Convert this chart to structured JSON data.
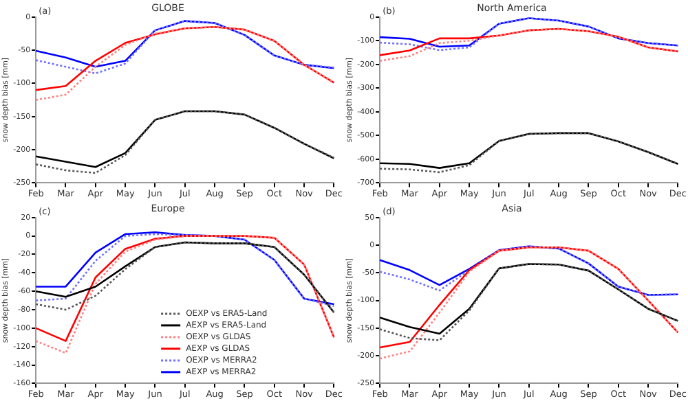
{
  "chart_data": [
    {
      "type": "line",
      "title": "GLOBE",
      "annotations": [
        "(a)"
      ],
      "ylabel": "snow depth bias [mm]",
      "categories": [
        "Feb",
        "Mar",
        "Apr",
        "May",
        "Jun",
        "Jul",
        "Aug",
        "Sep",
        "Oct",
        "Nov",
        "Dec"
      ],
      "ylim": [
        -250,
        0
      ],
      "yticks": [
        -250,
        -200,
        -150,
        -100,
        -50,
        0
      ],
      "grid": false,
      "legend": false,
      "series": [
        {
          "color": "#555555",
          "line_style": "dotted",
          "values": [
            -222,
            -231,
            -235,
            -208,
            -155,
            -142,
            -142,
            -147,
            -167,
            -191,
            -212
          ]
        },
        {
          "color": "#000000",
          "line_style": "solid",
          "values": [
            -210,
            -218,
            -226,
            -205,
            -155,
            -142,
            -142,
            -147,
            -167,
            -191,
            -213
          ]
        },
        {
          "color": "#ff8080",
          "line_style": "dotted",
          "values": [
            -125,
            -117,
            -75,
            -42,
            -25,
            -17,
            -15,
            -19,
            -36,
            -72,
            -98
          ]
        },
        {
          "color": "#ff0000",
          "line_style": "solid",
          "values": [
            -110,
            -104,
            -66,
            -39,
            -26,
            -17,
            -15,
            -19,
            -36,
            -72,
            -99
          ]
        },
        {
          "color": "#7070ff",
          "line_style": "dotted",
          "values": [
            -65,
            -75,
            -85,
            -70,
            -20,
            -6,
            -9,
            -27,
            -58,
            -72,
            -76
          ]
        },
        {
          "color": "#0000ff",
          "line_style": "solid",
          "values": [
            -51,
            -61,
            -75,
            -66,
            -20,
            -6,
            -9,
            -27,
            -58,
            -72,
            -77
          ]
        }
      ]
    },
    {
      "type": "line",
      "title": "North America",
      "annotations": [
        "(b)"
      ],
      "ylabel": "snow depth bias [mm]",
      "categories": [
        "Feb",
        "Mar",
        "Apr",
        "May",
        "Jun",
        "Jul",
        "Aug",
        "Sep",
        "Oct",
        "Nov",
        "Dec"
      ],
      "ylim": [
        -700,
        0
      ],
      "yticks": [
        -700,
        -600,
        -500,
        -400,
        -300,
        -200,
        -100,
        0
      ],
      "grid": false,
      "legend": false,
      "series": [
        {
          "color": "#555555",
          "line_style": "dotted",
          "values": [
            -640,
            -643,
            -655,
            -625,
            -523,
            -493,
            -490,
            -490,
            -525,
            -570,
            -620
          ]
        },
        {
          "color": "#000000",
          "line_style": "solid",
          "values": [
            -617,
            -620,
            -637,
            -617,
            -523,
            -493,
            -490,
            -490,
            -525,
            -570,
            -620
          ]
        },
        {
          "color": "#ff8080",
          "line_style": "dotted",
          "values": [
            -185,
            -165,
            -110,
            -100,
            -78,
            -56,
            -50,
            -60,
            -83,
            -128,
            -145
          ]
        },
        {
          "color": "#ff0000",
          "line_style": "solid",
          "values": [
            -161,
            -141,
            -90,
            -90,
            -78,
            -56,
            -50,
            -60,
            -83,
            -128,
            -145
          ]
        },
        {
          "color": "#7070ff",
          "line_style": "dotted",
          "values": [
            -108,
            -115,
            -140,
            -128,
            -28,
            -5,
            -15,
            -40,
            -90,
            -110,
            -120
          ]
        },
        {
          "color": "#0000ff",
          "line_style": "solid",
          "values": [
            -85,
            -92,
            -125,
            -120,
            -28,
            -5,
            -15,
            -40,
            -90,
            -110,
            -120
          ]
        }
      ]
    },
    {
      "type": "line",
      "title": "Europe",
      "annotations": [
        "(c)"
      ],
      "ylabel": "snow depth bias [mm]",
      "categories": [
        "Feb",
        "Mar",
        "Apr",
        "May",
        "Jun",
        "Jul",
        "Aug",
        "Sep",
        "Oct",
        "Nov",
        "Dec"
      ],
      "ylim": [
        -160,
        20
      ],
      "yticks": [
        -160,
        -140,
        -120,
        -100,
        -80,
        -60,
        -40,
        -20,
        0,
        20
      ],
      "grid": false,
      "legend": "bottom",
      "series": [
        {
          "name": "OEXP vs ERA5-Land",
          "color": "#555555",
          "line_style": "dotted",
          "values": [
            -74,
            -80,
            -65,
            -36,
            -12,
            -7,
            -8,
            -8,
            -12,
            -42,
            -83
          ]
        },
        {
          "name": "AEXP vs ERA5-Land",
          "color": "#000000",
          "line_style": "solid",
          "values": [
            -60,
            -66,
            -55,
            -33,
            -12,
            -7,
            -8,
            -8,
            -12,
            -42,
            -83
          ]
        },
        {
          "name": "OEXP vs GLDAS",
          "color": "#ff8080",
          "line_style": "dotted",
          "values": [
            -114,
            -127,
            -52,
            -17,
            -4,
            0,
            0,
            0,
            -2,
            -31,
            -110
          ]
        },
        {
          "name": "AEXP vs GLDAS",
          "color": "#ff0000",
          "line_style": "solid",
          "values": [
            -100,
            -114,
            -45,
            -14,
            -3,
            0,
            0,
            0,
            -2,
            -31,
            -110
          ]
        },
        {
          "name": "OEXP vs MERRA2",
          "color": "#7070ff",
          "line_style": "dotted",
          "values": [
            -70,
            -68,
            -27,
            0,
            2,
            1,
            0,
            -4,
            -26,
            -68,
            -76
          ]
        },
        {
          "name": "AEXP vs MERRA2",
          "color": "#0000ff",
          "line_style": "solid",
          "values": [
            -55,
            -55,
            -18,
            2,
            4,
            1,
            0,
            -4,
            -26,
            -68,
            -74
          ]
        }
      ]
    },
    {
      "type": "line",
      "title": "Asia",
      "annotations": [
        "(d)"
      ],
      "ylabel": "snow depth bias [mm]",
      "categories": [
        "Feb",
        "Mar",
        "Apr",
        "May",
        "Jun",
        "Jul",
        "Aug",
        "Sep",
        "Oct",
        "Nov",
        "Dec"
      ],
      "ylim": [
        -250,
        50
      ],
      "yticks": [
        -250,
        -200,
        -150,
        -100,
        -50,
        0,
        50
      ],
      "grid": false,
      "legend": false,
      "series": [
        {
          "color": "#555555",
          "line_style": "dotted",
          "values": [
            -152,
            -168,
            -172,
            -118,
            -42,
            -34,
            -35,
            -46,
            -80,
            -115,
            -137
          ]
        },
        {
          "color": "#000000",
          "line_style": "solid",
          "values": [
            -131,
            -148,
            -160,
            -115,
            -42,
            -34,
            -35,
            -46,
            -80,
            -115,
            -137
          ]
        },
        {
          "color": "#ff8080",
          "line_style": "dotted",
          "values": [
            -205,
            -192,
            -122,
            -48,
            -10,
            -4,
            -4,
            -10,
            -43,
            -100,
            -158
          ]
        },
        {
          "color": "#ff0000",
          "line_style": "solid",
          "values": [
            -185,
            -175,
            -108,
            -45,
            -10,
            -4,
            -4,
            -10,
            -43,
            -100,
            -158
          ]
        },
        {
          "color": "#7070ff",
          "line_style": "dotted",
          "values": [
            -48,
            -62,
            -82,
            -45,
            -9,
            -2,
            -6,
            -33,
            -75,
            -90,
            -89
          ]
        },
        {
          "color": "#0000ff",
          "line_style": "solid",
          "values": [
            -27,
            -45,
            -72,
            -43,
            -9,
            -2,
            -6,
            -33,
            -75,
            -90,
            -89
          ]
        }
      ]
    }
  ]
}
